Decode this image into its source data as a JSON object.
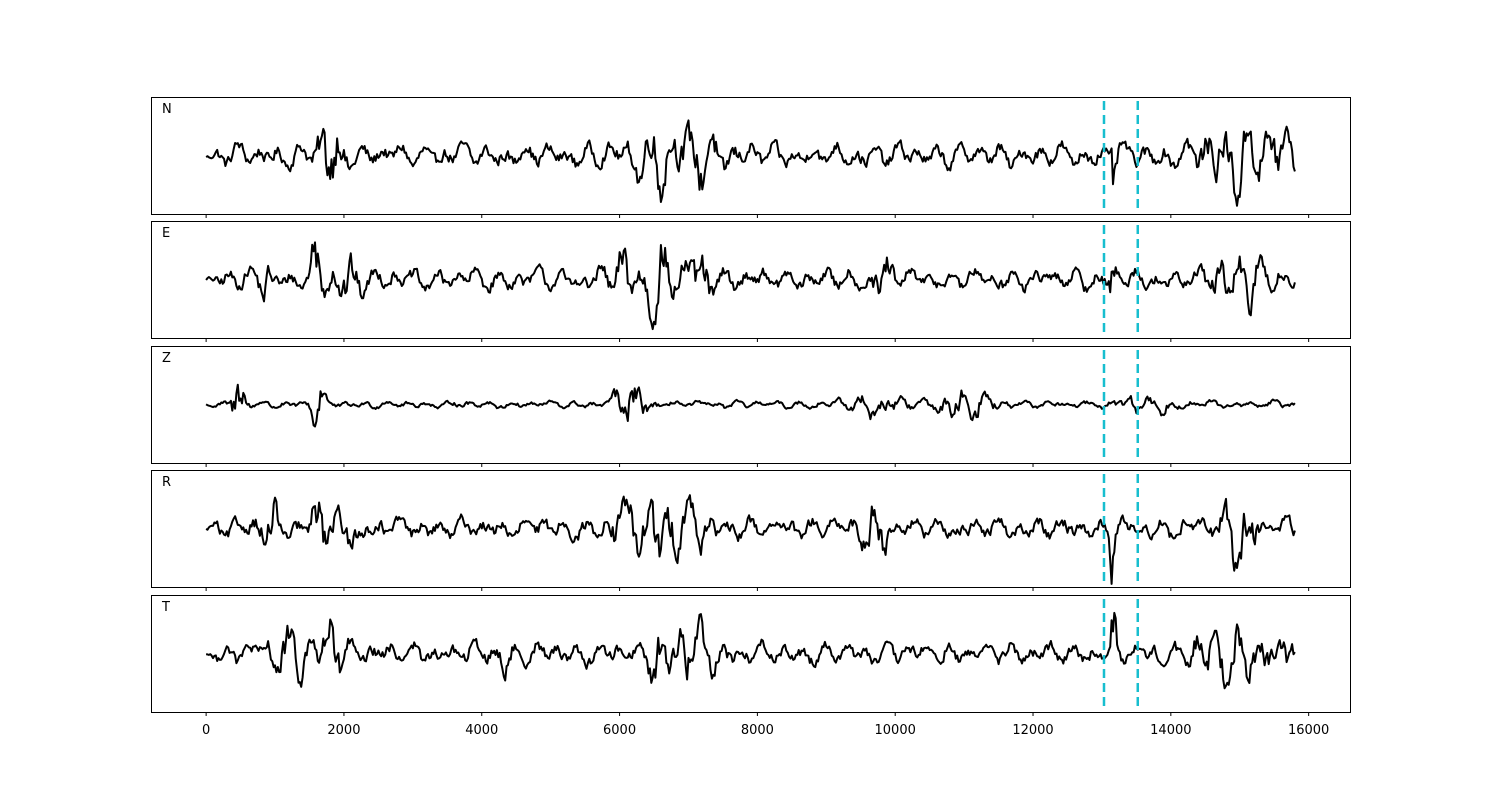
{
  "chart_data": {
    "type": "line",
    "xlim": [
      -800,
      16600
    ],
    "x_ticks": [
      0,
      2000,
      4000,
      6000,
      8000,
      10000,
      12000,
      14000,
      16000
    ],
    "x_tick_labels": [
      "0",
      "2000",
      "4000",
      "6000",
      "8000",
      "10000",
      "12000",
      "14000",
      "16000"
    ],
    "x_range": [
      0,
      15800
    ],
    "sample_step": 20,
    "colors": {
      "trace": "#000000",
      "marker": "#17becf"
    },
    "marker_lines": [
      13030,
      13520
    ],
    "grid": false,
    "panels": [
      {
        "label": "N",
        "ylim": [
          -1,
          1
        ],
        "noise": 0.26,
        "events": [
          [
            1800,
            0.9,
            120
          ],
          [
            6500,
            0.7,
            200
          ],
          [
            7200,
            0.55,
            250
          ],
          [
            13170,
            1.0,
            30
          ],
          [
            14900,
            0.55,
            350
          ],
          [
            15500,
            0.5,
            250
          ]
        ]
      },
      {
        "label": "E",
        "ylim": [
          -1,
          1
        ],
        "noise": 0.24,
        "events": [
          [
            900,
            0.45,
            80
          ],
          [
            1620,
            0.95,
            60
          ],
          [
            2000,
            0.55,
            150
          ],
          [
            6100,
            0.6,
            150
          ],
          [
            6550,
            0.85,
            120
          ],
          [
            7100,
            0.45,
            200
          ],
          [
            9800,
            0.4,
            120
          ],
          [
            13150,
            0.85,
            30
          ],
          [
            15000,
            0.55,
            250
          ]
        ]
      },
      {
        "label": "Z",
        "ylim": [
          -1,
          1
        ],
        "noise": 0.08,
        "events": [
          [
            480,
            0.95,
            70
          ],
          [
            1620,
            0.9,
            60
          ],
          [
            6150,
            0.6,
            150
          ],
          [
            9700,
            0.22,
            300
          ],
          [
            11000,
            0.3,
            300
          ],
          [
            13600,
            0.2,
            300
          ]
        ]
      },
      {
        "label": "R",
        "ylim": [
          -1,
          1
        ],
        "noise": 0.24,
        "events": [
          [
            900,
            0.55,
            100
          ],
          [
            1620,
            0.95,
            60
          ],
          [
            2000,
            0.55,
            150
          ],
          [
            6100,
            0.7,
            150
          ],
          [
            6550,
            0.85,
            120
          ],
          [
            7000,
            0.55,
            200
          ],
          [
            9700,
            0.45,
            150
          ],
          [
            13150,
            0.9,
            30
          ],
          [
            15000,
            0.75,
            150
          ]
        ]
      },
      {
        "label": "T",
        "ylim": [
          -1,
          1
        ],
        "noise": 0.24,
        "events": [
          [
            1200,
            0.45,
            200
          ],
          [
            1800,
            0.75,
            150
          ],
          [
            4330,
            0.5,
            60
          ],
          [
            6550,
            1.0,
            60
          ],
          [
            7000,
            0.6,
            250
          ],
          [
            13170,
            1.0,
            30
          ],
          [
            14800,
            0.6,
            300
          ],
          [
            15600,
            0.55,
            200
          ]
        ]
      }
    ]
  }
}
